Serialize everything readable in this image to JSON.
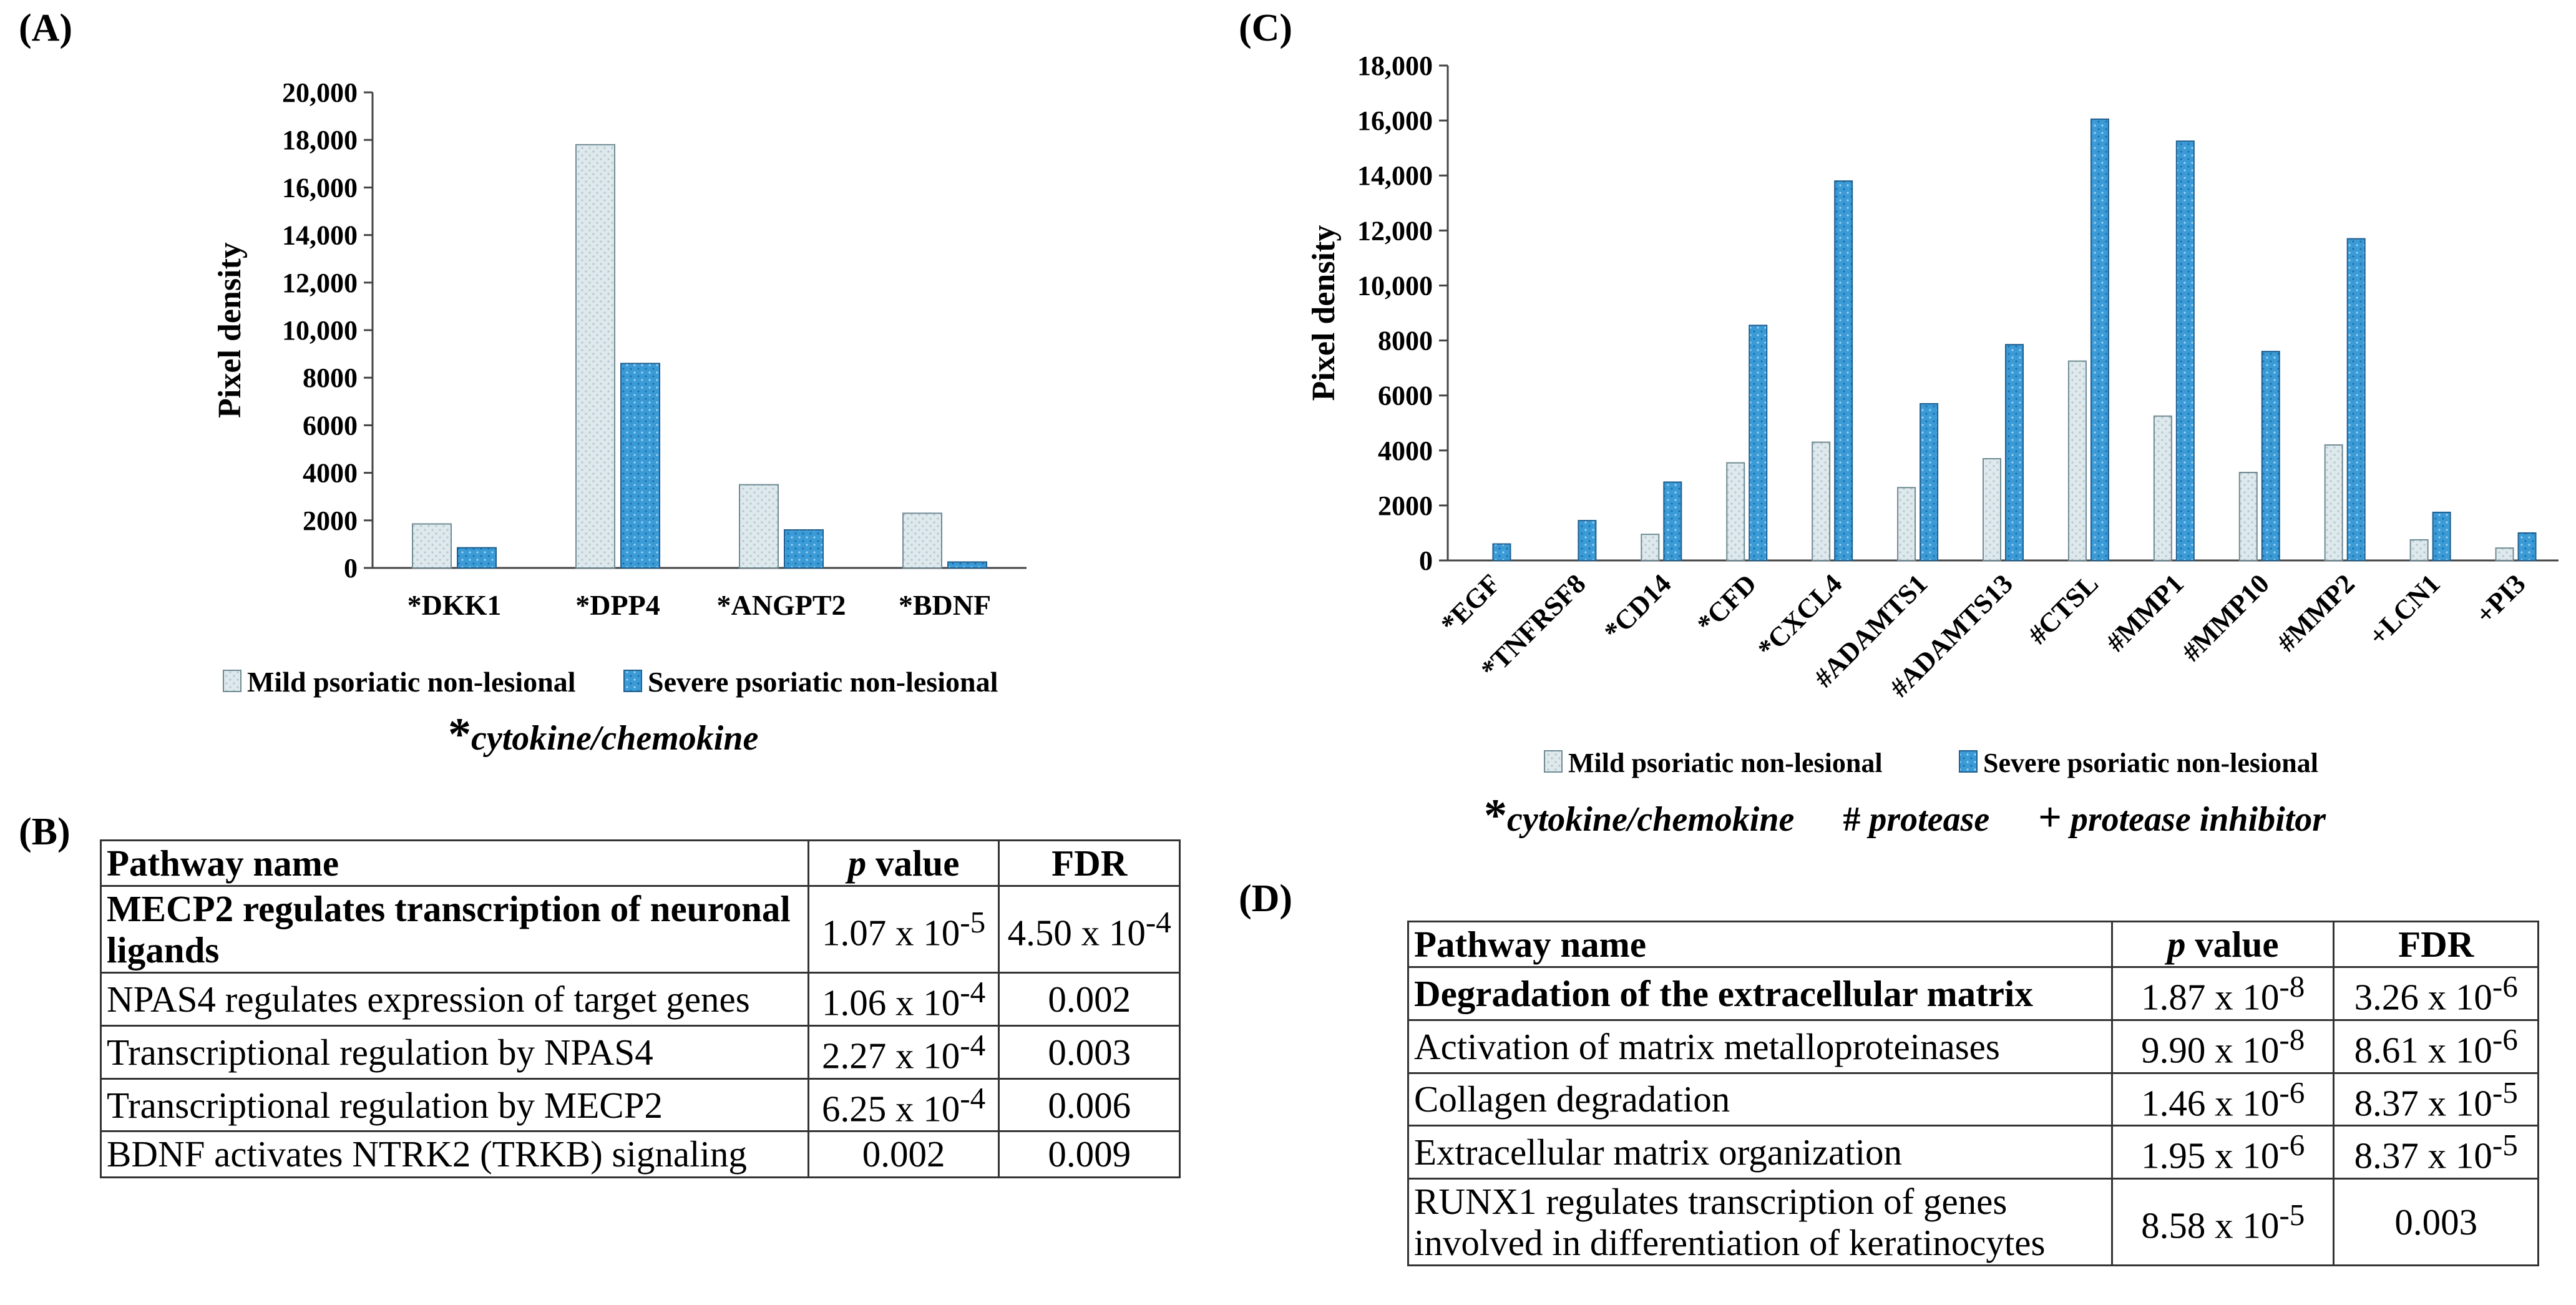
{
  "panels": {
    "A": "(A)",
    "B": "(B)",
    "C": "(C)",
    "D": "(D)"
  },
  "chart_data": [
    {
      "type": "bar",
      "panel": "A",
      "categories": [
        "*DKK1",
        "*DPP4",
        "*ANGPT2",
        "*BDNF"
      ],
      "series": [
        {
          "name": "Mild psoriatic non-lesional",
          "values": [
            1850,
            17800,
            3500,
            2300
          ],
          "color": "#dde9ec",
          "pattern": "dots-light"
        },
        {
          "name": "Severe psoriatic non-lesional",
          "values": [
            850,
            8600,
            1600,
            250
          ],
          "color": "#3b9bd6",
          "pattern": "dots-blue"
        }
      ],
      "ylabel": "Pixel density",
      "ylim": [
        0,
        20000
      ],
      "yticks": [
        0,
        2000,
        4000,
        6000,
        8000,
        10000,
        12000,
        14000,
        16000,
        18000,
        20000
      ],
      "ytick_labels": [
        "0",
        "2000",
        "4000",
        "6000",
        "8000",
        "10,000",
        "12,000",
        "14,000",
        "16,000",
        "18,000",
        "20,000"
      ],
      "legend_position": "bottom",
      "footnote": {
        "symbol": "*",
        "text": "cytokine/chemokine"
      }
    },
    {
      "type": "bar",
      "panel": "C",
      "categories": [
        "*EGF",
        "*TNFRSF8",
        "*CD14",
        "*CFD",
        "*CXCL4",
        "#ADAMTS1",
        "#ADAMTS13",
        "#CTSL",
        "#MMP1",
        "#MMP10",
        "#MMP2",
        "+LCN1",
        "+PI3"
      ],
      "series": [
        {
          "name": "Mild psoriatic non-lesional",
          "values": [
            0,
            0,
            950,
            3550,
            4300,
            2650,
            3700,
            7250,
            5250,
            3200,
            4200,
            750,
            450
          ],
          "color": "#dde9ec",
          "pattern": "dots-light"
        },
        {
          "name": "Severe psoriatic non-lesional",
          "values": [
            600,
            1450,
            2850,
            8550,
            13800,
            5700,
            7850,
            16050,
            15250,
            7600,
            11700,
            1750,
            1000
          ],
          "color": "#3b9bd6",
          "pattern": "dots-blue"
        }
      ],
      "ylabel": "Pixel density",
      "ylim": [
        0,
        18000
      ],
      "yticks": [
        0,
        2000,
        4000,
        6000,
        8000,
        10000,
        12000,
        14000,
        16000,
        18000
      ],
      "ytick_labels": [
        "0",
        "2000",
        "4000",
        "6000",
        "8000",
        "10,000",
        "12,000",
        "14,000",
        "16,000",
        "18,000"
      ],
      "legend_position": "bottom",
      "footnotes": [
        {
          "symbol": "*",
          "text": "cytokine/chemokine"
        },
        {
          "symbol": "#",
          "text": "protease"
        },
        {
          "symbol": "+",
          "text": "protease inhibitor"
        }
      ]
    },
    {
      "type": "table",
      "panel": "B",
      "headers": [
        "Pathway name",
        "p value",
        "FDR"
      ],
      "rows": [
        {
          "name": "MECP2 regulates transcription of neuronal ligands",
          "p_base": "1.07 x 10",
          "p_exp": "-5",
          "fdr_base": "4.50 x 10",
          "fdr_exp": "-4"
        },
        {
          "name": "NPAS4 regulates expression of target genes",
          "p_base": "1.06 x 10",
          "p_exp": "-4",
          "fdr_base": "0.002",
          "fdr_exp": ""
        },
        {
          "name": "Transcriptional regulation by NPAS4",
          "p_base": "2.27 x 10",
          "p_exp": "-4",
          "fdr_base": "0.003",
          "fdr_exp": ""
        },
        {
          "name": "Transcriptional regulation by MECP2",
          "p_base": "6.25 x 10",
          "p_exp": "-4",
          "fdr_base": "0.006",
          "fdr_exp": ""
        },
        {
          "name": "BDNF activates NTRK2 (TRKB) signaling",
          "p_base": "0.002",
          "p_exp": "",
          "fdr_base": "0.009",
          "fdr_exp": ""
        }
      ]
    },
    {
      "type": "table",
      "panel": "D",
      "headers": [
        "Pathway name",
        "p value",
        "FDR"
      ],
      "rows": [
        {
          "name": "Degradation of the extracellular matrix",
          "p_base": "1.87 x 10",
          "p_exp": "-8",
          "fdr_base": "3.26 x 10",
          "fdr_exp": "-6"
        },
        {
          "name": "Activation of matrix metalloproteinases",
          "p_base": "9.90 x 10",
          "p_exp": "-8",
          "fdr_base": "8.61 x 10",
          "fdr_exp": "-6"
        },
        {
          "name": "Collagen degradation",
          "p_base": "1.46 x 10",
          "p_exp": "-6",
          "fdr_base": "8.37 x 10",
          "fdr_exp": "-5"
        },
        {
          "name": "Extracellular matrix organization",
          "p_base": "1.95 x 10",
          "p_exp": "-6",
          "fdr_base": "8.37 x 10",
          "fdr_exp": "-5"
        },
        {
          "name": "RUNX1 regulates transcription of genes involved in differentiation of keratinocytes",
          "p_base": "8.58 x 10",
          "p_exp": "-5",
          "fdr_base": "0.003",
          "fdr_exp": ""
        }
      ]
    }
  ],
  "tables": {
    "B": {
      "header": {
        "name": "Pathway name",
        "p_italic": "p",
        "p_rest": " value",
        "fdr": "FDR"
      },
      "rows": [
        {
          "name": "MECP2 regulates transcription of neuronal ligands",
          "p": "1.07 x 10",
          "p_exp": "-5",
          "fdr": "4.50 x 10",
          "fdr_exp": "-4"
        },
        {
          "name": "NPAS4 regulates expression of target genes",
          "p": "1.06 x 10",
          "p_exp": "-4",
          "fdr": "0.002"
        },
        {
          "name": "Transcriptional regulation by NPAS4",
          "p": "2.27 x 10",
          "p_exp": "-4",
          "fdr": "0.003"
        },
        {
          "name": "Transcriptional regulation by MECP2",
          "p": "6.25 x 10",
          "p_exp": "-4",
          "fdr": "0.006"
        },
        {
          "name": "BDNF activates NTRK2 (TRKB) signaling",
          "p": "0.002",
          "fdr": "0.009"
        }
      ]
    },
    "D": {
      "header": {
        "name": "Pathway name",
        "p_italic": "p",
        "p_rest": " value",
        "fdr": "FDR"
      },
      "rows": [
        {
          "name": "Degradation of the extracellular matrix",
          "p": "1.87 x 10",
          "p_exp": "-8",
          "fdr": "3.26 x 10",
          "fdr_exp": "-6"
        },
        {
          "name": "Activation of matrix metalloproteinases",
          "p": "9.90 x 10",
          "p_exp": "-8",
          "fdr": "8.61 x 10",
          "fdr_exp": "-6"
        },
        {
          "name": "Collagen degradation",
          "p": "1.46 x 10",
          "p_exp": "-6",
          "fdr": "8.37 x 10",
          "fdr_exp": "-5"
        },
        {
          "name": "Extracellular matrix organization",
          "p": "1.95 x 10",
          "p_exp": "-6",
          "fdr": "8.37 x 10",
          "fdr_exp": "-5"
        },
        {
          "name_line1": "RUNX1 regulates transcription of genes",
          "name_line2": "involved in differentiation of keratinocytes",
          "p": "8.58 x 10",
          "p_exp": "-5",
          "fdr": "0.003"
        }
      ]
    }
  }
}
